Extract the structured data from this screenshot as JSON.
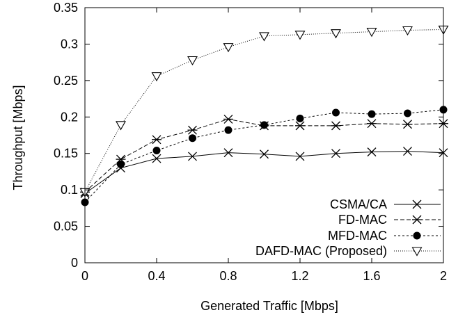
{
  "chart_data": {
    "type": "line",
    "title": "",
    "xlabel": "Generated Traffic [Mbps]",
    "ylabel": "Throughput [Mbps]",
    "xlim": [
      0,
      2
    ],
    "ylim": [
      0,
      0.35
    ],
    "xticks": [
      0,
      0.4,
      0.8,
      1.2,
      1.6,
      2
    ],
    "xtick_labels": [
      "0",
      "0.4",
      "0.8",
      "1.2",
      "1.6",
      "2"
    ],
    "yticks": [
      0,
      0.05,
      0.1,
      0.15,
      0.2,
      0.25,
      0.3,
      0.35
    ],
    "ytick_labels": [
      "0",
      "0.05",
      "0.1",
      "0.15",
      "0.2",
      "0.25",
      "0.3",
      "0.35"
    ],
    "grid": false,
    "legend_position": "bottom-right",
    "x": [
      0,
      0.2,
      0.4,
      0.6,
      0.8,
      1.0,
      1.2,
      1.4,
      1.6,
      1.8,
      2.0
    ],
    "series": [
      {
        "name": "CSMA/CA",
        "marker": "x",
        "line": "solid",
        "values": [
          0.095,
          0.13,
          0.143,
          0.146,
          0.151,
          0.149,
          0.146,
          0.15,
          0.152,
          0.153,
          0.151
        ]
      },
      {
        "name": "FD-MAC",
        "marker": "star",
        "line": "dashed",
        "values": [
          0.097,
          0.142,
          0.169,
          0.182,
          0.197,
          0.188,
          0.188,
          0.188,
          0.191,
          0.19,
          0.191
        ]
      },
      {
        "name": "MFD-MAC",
        "marker": "filled-circle",
        "line": "short-dash",
        "values": [
          0.083,
          0.135,
          0.154,
          0.171,
          0.182,
          0.189,
          0.198,
          0.206,
          0.204,
          0.205,
          0.21
        ]
      },
      {
        "name": "DAFD-MAC (Proposed)",
        "marker": "open-triangle-down",
        "line": "dotted",
        "values": [
          0.097,
          0.189,
          0.256,
          0.278,
          0.296,
          0.311,
          0.313,
          0.315,
          0.317,
          0.319,
          0.32
        ]
      }
    ]
  }
}
